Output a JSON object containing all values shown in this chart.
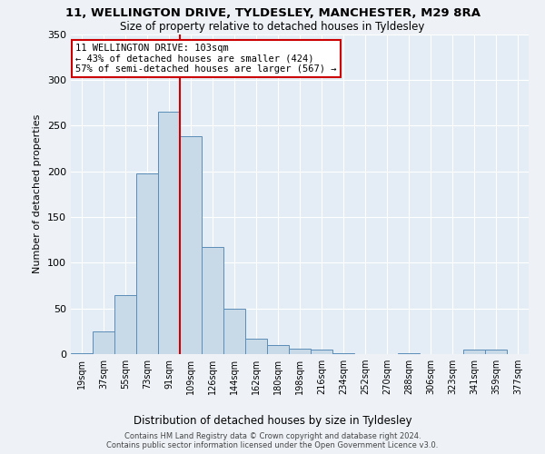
{
  "title1": "11, WELLINGTON DRIVE, TYLDESLEY, MANCHESTER, M29 8RA",
  "title2": "Size of property relative to detached houses in Tyldesley",
  "xlabel": "Distribution of detached houses by size in Tyldesley",
  "ylabel": "Number of detached properties",
  "bin_labels": [
    "19sqm",
    "37sqm",
    "55sqm",
    "73sqm",
    "91sqm",
    "109sqm",
    "126sqm",
    "144sqm",
    "162sqm",
    "180sqm",
    "198sqm",
    "216sqm",
    "234sqm",
    "252sqm",
    "270sqm",
    "288sqm",
    "306sqm",
    "323sqm",
    "341sqm",
    "359sqm",
    "377sqm"
  ],
  "bar_heights": [
    1,
    25,
    65,
    198,
    265,
    238,
    117,
    50,
    17,
    10,
    6,
    5,
    1,
    0,
    0,
    1,
    0,
    0,
    5,
    5,
    0
  ],
  "bar_color": "#c8d9e8",
  "bar_edge_color": "#5b8db8",
  "vline_color": "#cc0000",
  "annotation_text": "11 WELLINGTON DRIVE: 103sqm\n← 43% of detached houses are smaller (424)\n57% of semi-detached houses are larger (567) →",
  "annotation_box_color": "#ffffff",
  "annotation_box_edge": "#cc0000",
  "ylim": [
    0,
    350
  ],
  "yticks": [
    0,
    50,
    100,
    150,
    200,
    250,
    300,
    350
  ],
  "footer1": "Contains HM Land Registry data © Crown copyright and database right 2024.",
  "footer2": "Contains public sector information licensed under the Open Government Licence v3.0.",
  "bg_color": "#eef2f7",
  "plot_bg_color": "#e4edf5"
}
